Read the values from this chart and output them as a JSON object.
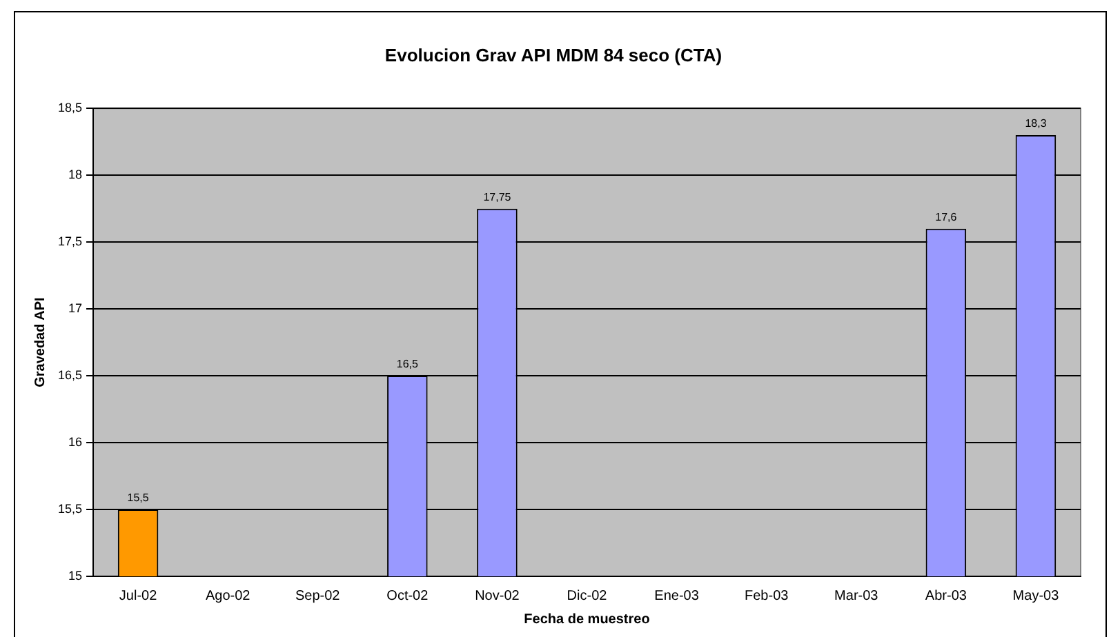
{
  "chart_data": {
    "type": "bar",
    "title": "Evolucion Grav API MDM 84 seco (CTA)",
    "xlabel": "Fecha de muestreo",
    "ylabel": "Gravedad API",
    "categories": [
      "Jul-02",
      "Ago-02",
      "Sep-02",
      "Oct-02",
      "Nov-02",
      "Dic-02",
      "Ene-03",
      "Feb-03",
      "Mar-03",
      "Abr-03",
      "May-03"
    ],
    "values": [
      15.5,
      null,
      null,
      16.5,
      17.75,
      null,
      null,
      null,
      null,
      17.6,
      18.3
    ],
    "colors": [
      "#ff9900",
      "#9999ff",
      "#9999ff",
      "#9999ff",
      "#9999ff",
      "#9999ff",
      "#9999ff",
      "#9999ff",
      "#9999ff",
      "#9999ff",
      "#9999ff"
    ],
    "value_labels": [
      "15,5",
      null,
      null,
      "16,5",
      "17,75",
      null,
      null,
      null,
      null,
      "17,6",
      "18,3"
    ],
    "ylim": [
      15,
      18.5
    ],
    "yticks": [
      15,
      {
        "value": 15.5,
        "label": "15,5"
      },
      16,
      {
        "value": 16.5,
        "label": "16,5"
      },
      17,
      {
        "value": 17.5,
        "label": "17,5"
      },
      18,
      {
        "value": 18.5,
        "label": "18,5"
      }
    ],
    "grid": "y",
    "legend": false
  }
}
